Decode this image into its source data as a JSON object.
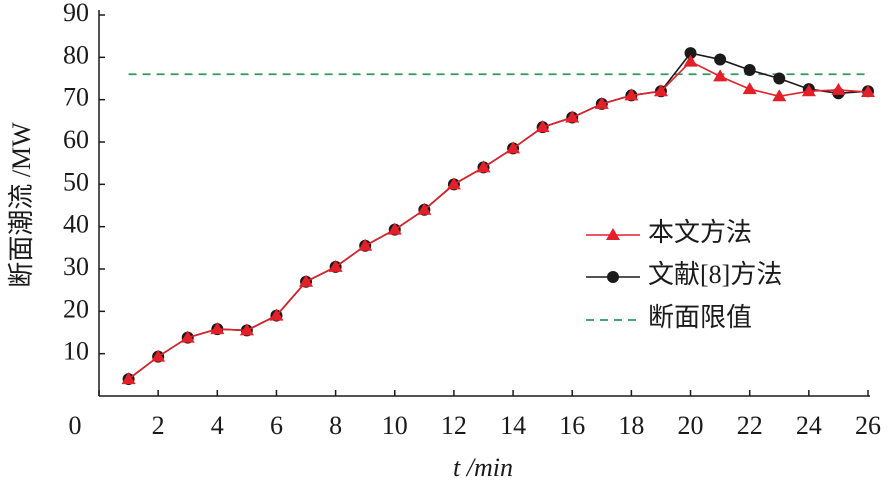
{
  "chart_data": {
    "type": "line",
    "x_label": "t /min",
    "y_label": "断面潮流 /MW",
    "x": [
      1,
      2,
      3,
      4,
      5,
      6,
      7,
      8,
      9,
      10,
      11,
      12,
      13,
      14,
      15,
      16,
      17,
      18,
      19,
      20,
      21,
      22,
      23,
      24,
      25,
      26
    ],
    "series": [
      {
        "name": "文献[8]方法",
        "color": "#1a1a1a",
        "marker": "circle",
        "values": [
          4,
          9.3,
          13.8,
          15.8,
          15.5,
          19,
          27,
          30.5,
          35.5,
          39.3,
          44,
          50,
          54,
          58.5,
          63.5,
          65.8,
          69,
          71,
          72,
          81,
          79.5,
          77,
          75,
          72.5,
          71.5,
          72
        ]
      },
      {
        "name": "本文方法",
        "color": "#e3202a",
        "marker": "triangle",
        "values": [
          4,
          9.3,
          13.8,
          15.8,
          15.5,
          19,
          27,
          30.5,
          35.5,
          39.3,
          44,
          50,
          54,
          58.5,
          63.5,
          65.8,
          69,
          71,
          72,
          79,
          75.5,
          72.5,
          70.8,
          72,
          72.3,
          71.8
        ]
      }
    ],
    "limit": {
      "name": "断面限值",
      "value": 76,
      "color": "#2e9a5a"
    },
    "legend_order": [
      1,
      0
    ],
    "xlim": [
      0,
      26
    ],
    "xticks": [
      0,
      2,
      4,
      6,
      8,
      10,
      12,
      14,
      16,
      18,
      20,
      22,
      24,
      26
    ],
    "ylim": [
      0,
      90
    ],
    "yticks": [
      10,
      20,
      30,
      40,
      50,
      60,
      70,
      80,
      90
    ]
  }
}
